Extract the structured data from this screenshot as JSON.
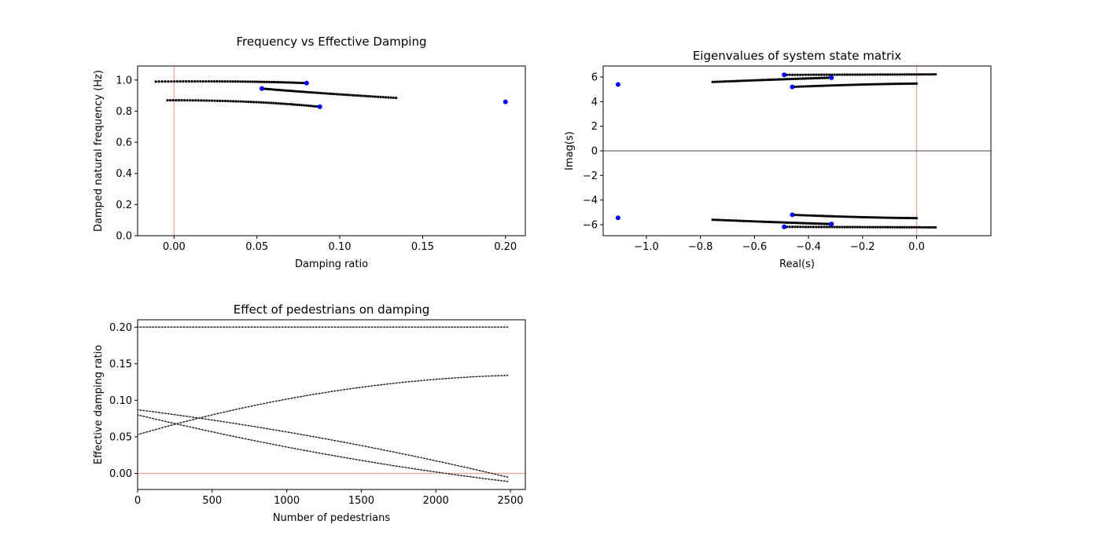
{
  "chart_data": [
    {
      "type": "scatter",
      "title": "Frequency vs Effective Damping",
      "xlabel": "Damping ratio",
      "ylabel": "Damped natural frequency (Hz)",
      "xlim": [
        -0.022,
        0.212
      ],
      "ylim": [
        0.0,
        1.09
      ],
      "xticks": [
        0.0,
        0.05,
        0.1,
        0.15,
        0.2
      ],
      "xtick_labels": [
        "0.00",
        "0.05",
        "0.10",
        "0.15",
        "0.20"
      ],
      "yticks": [
        0.0,
        0.2,
        0.4,
        0.6,
        0.8,
        1.0
      ],
      "ytick_labels": [
        "0.0",
        "0.2",
        "0.4",
        "0.6",
        "0.8",
        "1.0"
      ],
      "reference_lines": [
        {
          "axis": "x",
          "value": 0.0,
          "color": "#f4a599"
        }
      ],
      "series": [
        {
          "color": "#000000",
          "marker": "small-dot",
          "start": [
            0.08,
            0.98
          ],
          "end": [
            -0.011,
            0.99
          ],
          "mid": [
            0.04,
            0.99
          ]
        },
        {
          "color": "#000000",
          "marker": "small-dot",
          "start": [
            0.053,
            0.945
          ],
          "end": [
            0.134,
            0.885
          ],
          "mid": [
            0.09,
            0.915
          ]
        },
        {
          "color": "#000000",
          "marker": "small-dot",
          "start": [
            0.088,
            0.828
          ],
          "end": [
            -0.004,
            0.87
          ],
          "mid": [
            0.045,
            0.86
          ]
        },
        {
          "color": "#000000",
          "marker": "small-dot",
          "start": [
            0.2,
            0.86
          ],
          "end": [
            0.2,
            0.86
          ],
          "mid": [
            0.2,
            0.86
          ]
        }
      ],
      "highlight_points": [
        {
          "color": "#0000ff",
          "x": 0.08,
          "y": 0.98
        },
        {
          "color": "#0000ff",
          "x": 0.053,
          "y": 0.945
        },
        {
          "color": "#0000ff",
          "x": 0.088,
          "y": 0.828
        },
        {
          "color": "#0000ff",
          "x": 0.2,
          "y": 0.86
        }
      ]
    },
    {
      "type": "scatter",
      "title": "Eigenvalues of system state matrix",
      "xlabel": "Real(s)",
      "ylabel": "Imag(s)",
      "xlim": [
        -1.16,
        0.275
      ],
      "ylim": [
        -6.9,
        6.9
      ],
      "xticks": [
        -1.0,
        -0.8,
        -0.6,
        -0.4,
        -0.2,
        0.0
      ],
      "xtick_labels": [
        "−1.0",
        "−0.8",
        "−0.6",
        "−0.4",
        "−0.2",
        "0.0"
      ],
      "yticks": [
        -6,
        -4,
        -2,
        0,
        2,
        4,
        6
      ],
      "ytick_labels": [
        "−6",
        "−4",
        "−2",
        "0",
        "2",
        "4",
        "6"
      ],
      "reference_lines": [
        {
          "axis": "x",
          "value": 0.0,
          "color": "#f4a599"
        },
        {
          "axis": "y",
          "value": 0.0,
          "color": "#000000"
        }
      ],
      "series": [
        {
          "color": "#000000",
          "marker": "small-dot",
          "start": [
            -0.49,
            6.18
          ],
          "end": [
            0.07,
            6.22
          ],
          "mid": [
            -0.2,
            6.2
          ]
        },
        {
          "color": "#000000",
          "marker": "small-dot",
          "start": [
            -0.315,
            5.95
          ],
          "end": [
            -0.755,
            5.6
          ],
          "mid": [
            -0.52,
            5.8
          ]
        },
        {
          "color": "#000000",
          "marker": "small-dot",
          "start": [
            -0.46,
            5.2
          ],
          "end": [
            0.0,
            5.47
          ],
          "mid": [
            -0.22,
            5.38
          ]
        },
        {
          "color": "#000000",
          "marker": "small-dot",
          "start": [
            -0.49,
            -6.18
          ],
          "end": [
            0.07,
            -6.22
          ],
          "mid": [
            -0.2,
            -6.2
          ]
        },
        {
          "color": "#000000",
          "marker": "small-dot",
          "start": [
            -0.315,
            -5.95
          ],
          "end": [
            -0.755,
            -5.6
          ],
          "mid": [
            -0.52,
            -5.8
          ]
        },
        {
          "color": "#000000",
          "marker": "small-dot",
          "start": [
            -0.46,
            -5.2
          ],
          "end": [
            0.0,
            -5.47
          ],
          "mid": [
            -0.22,
            -5.38
          ]
        }
      ],
      "highlight_points": [
        {
          "color": "#0000ff",
          "x": -1.105,
          "y": 5.4
        },
        {
          "color": "#0000ff",
          "x": -1.105,
          "y": -5.45
        },
        {
          "color": "#0000ff",
          "x": -0.49,
          "y": 6.18
        },
        {
          "color": "#0000ff",
          "x": -0.315,
          "y": 5.95
        },
        {
          "color": "#0000ff",
          "x": -0.46,
          "y": 5.2
        },
        {
          "color": "#0000ff",
          "x": -0.49,
          "y": -6.18
        },
        {
          "color": "#0000ff",
          "x": -0.315,
          "y": -5.95
        },
        {
          "color": "#0000ff",
          "x": -0.46,
          "y": -5.2
        }
      ]
    },
    {
      "type": "line",
      "title": "Effect of pedestrians on damping",
      "xlabel": "Number of pedestrians",
      "ylabel": "Effective damping ratio",
      "xlim": [
        0,
        2600
      ],
      "ylim": [
        -0.022,
        0.21
      ],
      "xticks": [
        0,
        500,
        1000,
        1500,
        2000,
        2500
      ],
      "xtick_labels": [
        "0",
        "500",
        "1000",
        "1500",
        "2000",
        "2500"
      ],
      "yticks": [
        0.0,
        0.05,
        0.1,
        0.15,
        0.2
      ],
      "ytick_labels": [
        "0.00",
        "0.05",
        "0.10",
        "0.15",
        "0.20"
      ],
      "reference_lines": [
        {
          "axis": "y",
          "value": 0.0,
          "color": "#f4a599"
        }
      ],
      "series": [
        {
          "color": "#000000",
          "x": [
            0,
            2480
          ],
          "start": 0.2,
          "end": 0.2,
          "mid": 0.2
        },
        {
          "color": "#000000",
          "x": [
            0,
            2480
          ],
          "start": 0.053,
          "end": 0.134,
          "mid": 0.11
        },
        {
          "color": "#000000",
          "x": [
            0,
            2480
          ],
          "start": 0.087,
          "end": -0.005,
          "mid": 0.048
        },
        {
          "color": "#000000",
          "x": [
            0,
            2480
          ],
          "start": 0.08,
          "end": -0.011,
          "mid": 0.027
        }
      ]
    }
  ]
}
